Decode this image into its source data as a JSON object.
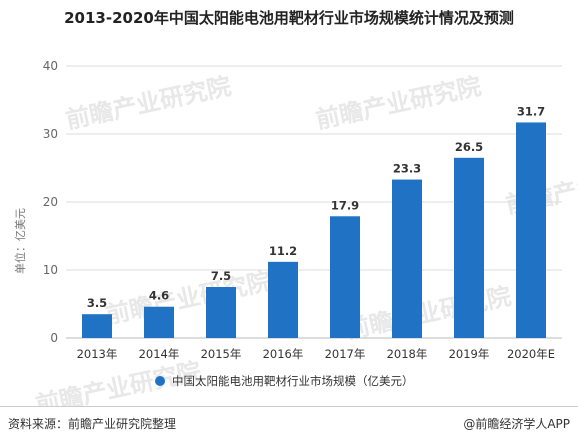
{
  "title": "2013-2020年中国太阳能电池用靶材行业市场规模统计情况及预测",
  "footer": {
    "source": "资料来源：前瞻产业研究院整理",
    "credit": "@前瞻经济学人APP"
  },
  "watermark": "前瞻产业研究院",
  "colors": {
    "bar": "#1f72c4",
    "grid": "#dddddd",
    "axis_text": "#666666",
    "label": "#333333"
  },
  "chart_data": {
    "type": "bar",
    "categories": [
      "2013年",
      "2014年",
      "2015年",
      "2016年",
      "2017年",
      "2018年",
      "2019年",
      "2020年E"
    ],
    "series": [
      {
        "name": "中国太阳能电池用靶材行业市场规模（亿美元）",
        "values": [
          3.5,
          4.6,
          7.5,
          11.2,
          17.9,
          23.3,
          26.5,
          31.7
        ]
      }
    ],
    "ylabel": "单位：亿美元",
    "xlabel": "",
    "ylim": [
      0,
      40
    ],
    "yticks": [
      0,
      10,
      20,
      30,
      40
    ],
    "grid": true,
    "legend": "bottom"
  }
}
